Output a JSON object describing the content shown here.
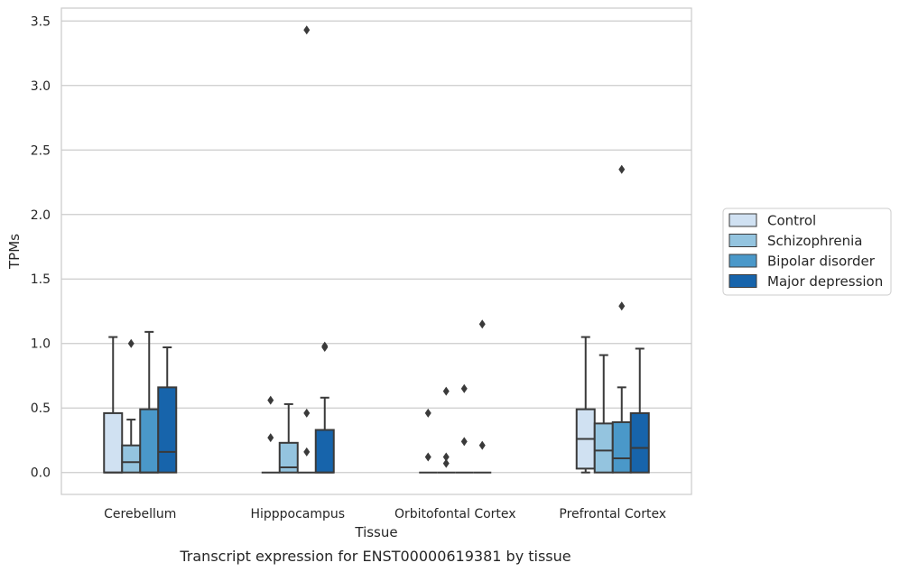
{
  "chart_data": {
    "type": "box",
    "xlabel": "Tissue",
    "ylabel": "TPMs",
    "caption": "Transcript expression for ENST00000619381 by tissue",
    "ylim": [
      -0.17,
      3.6
    ],
    "yticks": [
      0.0,
      0.5,
      1.0,
      1.5,
      2.0,
      2.5,
      3.0,
      3.5
    ],
    "ytick_labels": [
      "0.0",
      "0.5",
      "1.0",
      "1.5",
      "2.0",
      "2.5",
      "3.0",
      "3.5"
    ],
    "grid": "horizontal",
    "legend_position": "right",
    "categories": [
      "Cerebellum",
      "Hipppocampus",
      "Orbitofontal Cortex",
      "Prefrontal Cortex"
    ],
    "series": [
      {
        "name": "Control",
        "color": "#d0e1f2",
        "boxes": [
          {
            "whisker_low": 0.0,
            "q1": 0.0,
            "median": 0.0,
            "q3": 0.46,
            "whisker_high": 1.05,
            "outliers": []
          },
          {
            "whisker_low": 0.0,
            "q1": 0.0,
            "median": 0.0,
            "q3": 0.0,
            "whisker_high": 0.0,
            "outliers": [
              0.56,
              0.27
            ]
          },
          {
            "whisker_low": 0.0,
            "q1": 0.0,
            "median": 0.0,
            "q3": 0.0,
            "whisker_high": 0.0,
            "outliers": [
              0.46,
              0.12
            ]
          },
          {
            "whisker_low": 0.0,
            "q1": 0.03,
            "median": 0.26,
            "q3": 0.49,
            "whisker_high": 1.05,
            "outliers": []
          }
        ]
      },
      {
        "name": "Schizophrenia",
        "color": "#94c4df",
        "boxes": [
          {
            "whisker_low": 0.0,
            "q1": 0.0,
            "median": 0.08,
            "q3": 0.21,
            "whisker_high": 0.41,
            "outliers": [
              1.0
            ]
          },
          {
            "whisker_low": 0.0,
            "q1": 0.0,
            "median": 0.04,
            "q3": 0.23,
            "whisker_high": 0.53,
            "outliers": []
          },
          {
            "whisker_low": 0.0,
            "q1": 0.0,
            "median": 0.0,
            "q3": 0.0,
            "whisker_high": 0.0,
            "outliers": [
              0.63,
              0.12,
              0.07
            ]
          },
          {
            "whisker_low": 0.0,
            "q1": 0.0,
            "median": 0.17,
            "q3": 0.38,
            "whisker_high": 0.91,
            "outliers": []
          }
        ]
      },
      {
        "name": "Bipolar disorder",
        "color": "#4a98c9",
        "boxes": [
          {
            "whisker_low": 0.0,
            "q1": 0.0,
            "median": 0.0,
            "q3": 0.49,
            "whisker_high": 1.09,
            "outliers": []
          },
          {
            "whisker_low": 0.0,
            "q1": 0.0,
            "median": 0.0,
            "q3": 0.0,
            "whisker_high": 0.0,
            "outliers": [
              3.43,
              0.46,
              0.16
            ]
          },
          {
            "whisker_low": 0.0,
            "q1": 0.0,
            "median": 0.0,
            "q3": 0.0,
            "whisker_high": 0.0,
            "outliers": [
              0.65,
              0.24
            ]
          },
          {
            "whisker_low": 0.0,
            "q1": 0.0,
            "median": 0.11,
            "q3": 0.39,
            "whisker_high": 0.66,
            "outliers": [
              2.35,
              1.29
            ]
          }
        ]
      },
      {
        "name": "Major depression",
        "color": "#1764ab",
        "boxes": [
          {
            "whisker_low": 0.0,
            "q1": 0.0,
            "median": 0.16,
            "q3": 0.66,
            "whisker_high": 0.97,
            "outliers": []
          },
          {
            "whisker_low": 0.0,
            "q1": 0.0,
            "median": 0.0,
            "q3": 0.33,
            "whisker_high": 0.58,
            "outliers": [
              0.98,
              0.97
            ]
          },
          {
            "whisker_low": 0.0,
            "q1": 0.0,
            "median": 0.0,
            "q3": 0.0,
            "whisker_high": 0.0,
            "outliers": [
              1.15,
              0.21
            ]
          },
          {
            "whisker_low": 0.0,
            "q1": 0.0,
            "median": 0.19,
            "q3": 0.46,
            "whisker_high": 0.96,
            "outliers": []
          }
        ]
      }
    ]
  }
}
